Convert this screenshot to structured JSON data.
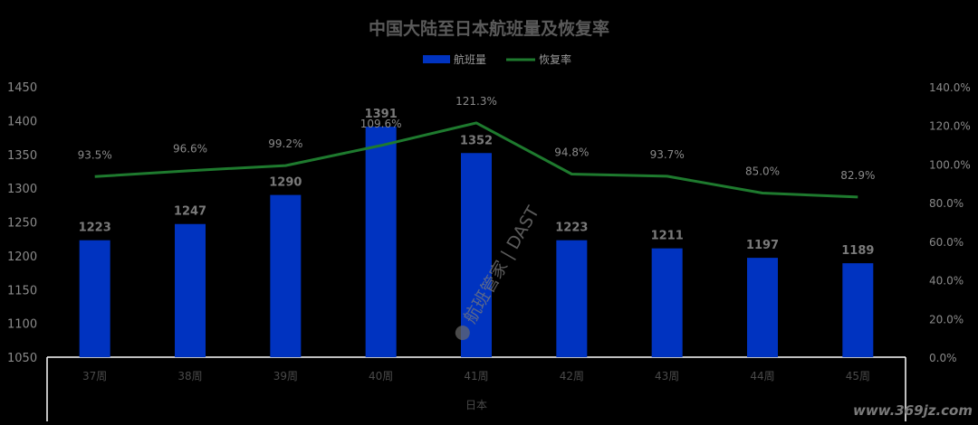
{
  "chart_data": {
    "type": "bar+line",
    "title": "中国大陆至日本航班量及恢复率",
    "categories": [
      "37周",
      "38周",
      "39周",
      "40周",
      "41周",
      "42周",
      "43周",
      "44周",
      "45周"
    ],
    "group_label": "日本",
    "series": [
      {
        "name": "航班量",
        "type": "bar",
        "axis": "left",
        "values": [
          1223,
          1247,
          1290,
          1391,
          1352,
          1223,
          1211,
          1197,
          1189
        ],
        "labels": [
          "1223",
          "1247",
          "1290",
          "1391",
          "1352",
          "1223",
          "1211",
          "1197",
          "1189"
        ],
        "color": "#0033C0"
      },
      {
        "name": "恢复率",
        "type": "line",
        "axis": "right",
        "values": [
          93.5,
          96.6,
          99.2,
          109.6,
          121.3,
          94.8,
          93.7,
          85.0,
          82.9
        ],
        "labels": [
          "93.5%",
          "96.6%",
          "99.2%",
          "109.6%",
          "121.3%",
          "94.8%",
          "93.7%",
          "85.0%",
          "82.9%"
        ],
        "color": "#1E7A2E"
      }
    ],
    "y_left": {
      "min": 1050,
      "max": 1450,
      "ticks": [
        1050,
        1100,
        1150,
        1200,
        1250,
        1300,
        1350,
        1400,
        1450
      ],
      "tick_labels": [
        "1050",
        "1100",
        "1150",
        "1200",
        "1250",
        "1300",
        "1350",
        "1400",
        "1450"
      ]
    },
    "y_right": {
      "min": 0,
      "max": 140,
      "ticks": [
        0,
        20,
        40,
        60,
        80,
        100,
        120,
        140
      ],
      "tick_labels": [
        "0.0%",
        "20.0%",
        "40.0%",
        "60.0%",
        "80.0%",
        "100.0%",
        "120.0%",
        "140.0%"
      ]
    },
    "grid": false,
    "legend_position": "top-center",
    "watermark": "航班管家 | DAST",
    "site_watermark": "www.369jz.com"
  }
}
